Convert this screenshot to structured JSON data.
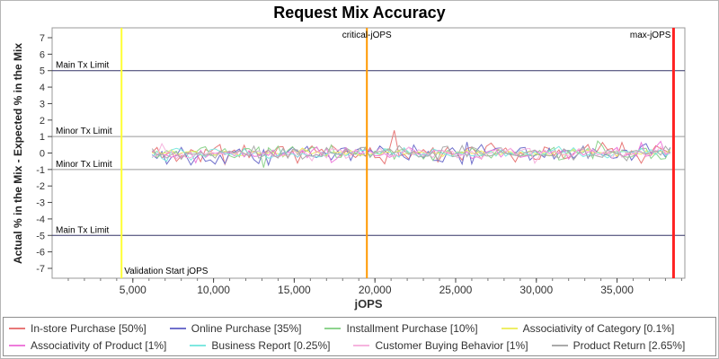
{
  "chart_data": {
    "type": "line",
    "title": "Request Mix Accuracy",
    "xlabel": "jOPS",
    "ylabel": "Actual % in the Mix - Expected % in the Mix",
    "xlim": [
      0,
      39200
    ],
    "ylim": [
      -7.6,
      7.6
    ],
    "x_ticks": [
      5000,
      10000,
      15000,
      20000,
      25000,
      30000,
      35000
    ],
    "y_ticks": [
      -7,
      -6,
      -5,
      -4,
      -3,
      -2,
      -1,
      0,
      1,
      2,
      3,
      4,
      5,
      6,
      7
    ],
    "grid": false,
    "legend_position": "bottom",
    "baseline": 0,
    "series_x_start": 6200,
    "series_x_end": 38500,
    "series_sample_step": 300,
    "series": [
      {
        "name": "In-store Purchase [50%]",
        "color": "#e87878",
        "amplitude_pct": 0.45,
        "seed": 11
      },
      {
        "name": "Online Purchase [35%]",
        "color": "#7070cc",
        "amplitude_pct": 0.45,
        "seed": 22
      },
      {
        "name": "Installment Purchase [10%]",
        "color": "#8ed48e",
        "amplitude_pct": 0.3,
        "seed": 33
      },
      {
        "name": "Associativity of Category [0.1%]",
        "color": "#eeee66",
        "amplitude_pct": 0.15,
        "seed": 44
      },
      {
        "name": "Associativity of Product [1%]",
        "color": "#ee7bdb",
        "amplitude_pct": 0.25,
        "seed": 55
      },
      {
        "name": "Business Report [0.25%]",
        "color": "#7fe8e0",
        "amplitude_pct": 0.2,
        "seed": 66
      },
      {
        "name": "Customer Buying Behavior [1%]",
        "color": "#f6b4de",
        "amplitude_pct": 0.25,
        "seed": 77
      },
      {
        "name": "Product Return [2.65%]",
        "color": "#aaaaaa",
        "amplitude_pct": 0.3,
        "seed": 88
      }
    ],
    "limit_lines": [
      {
        "value": 5,
        "label": "Main Tx Limit",
        "color": "#333366"
      },
      {
        "value": 1,
        "label": "Minor Tx Limit",
        "color": "#999999"
      },
      {
        "value": -1,
        "label": "Minor Tx Limit",
        "color": "#999999"
      },
      {
        "value": -5,
        "label": "Main Tx Limit",
        "color": "#333366"
      }
    ],
    "vertical_markers": [
      {
        "x": 4300,
        "label": "Validation Start jOPS",
        "color": "#ffff33",
        "width": 2,
        "label_pos": "bottom-right"
      },
      {
        "x": 19500,
        "label": "critical-jOPS",
        "color": "#ff9900",
        "width": 2,
        "label_pos": "top-center"
      },
      {
        "x": 38500,
        "label": "max-jOPS",
        "color": "#ff2222",
        "width": 3,
        "label_pos": "top-left"
      }
    ]
  }
}
